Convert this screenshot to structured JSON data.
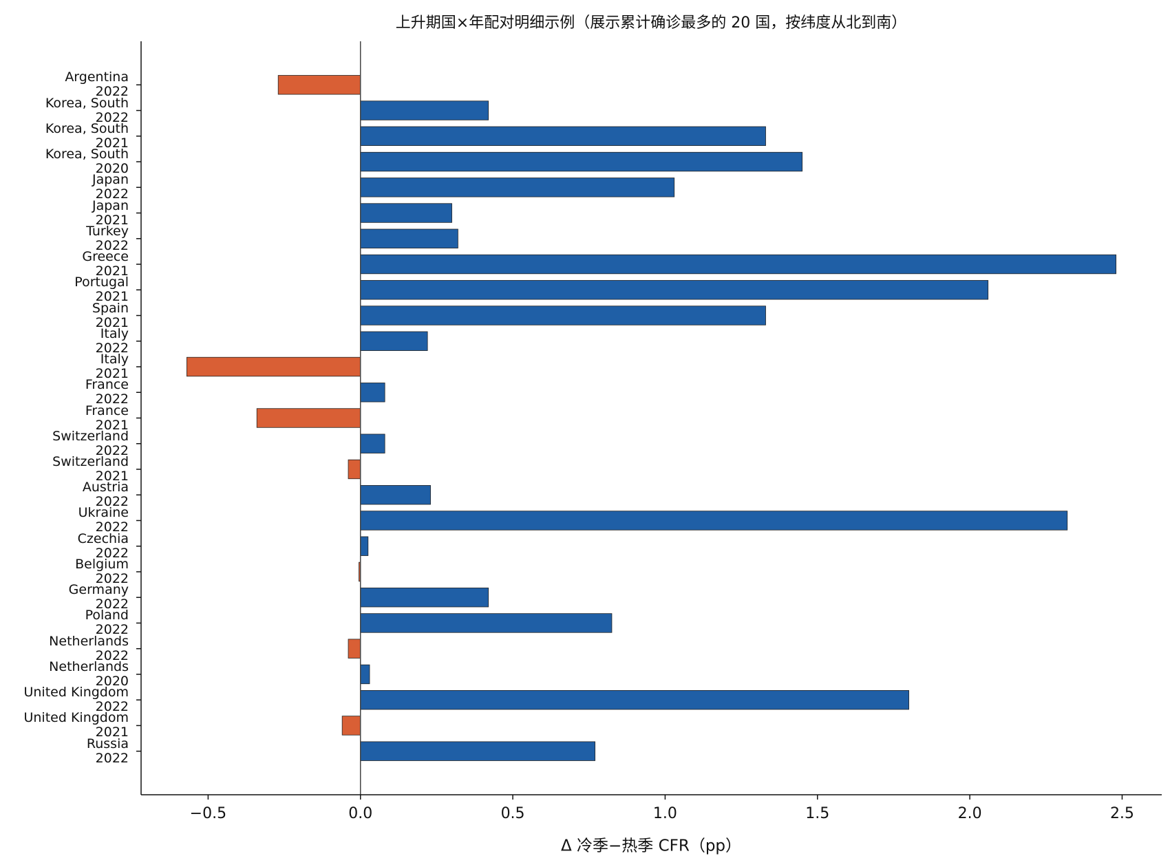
{
  "chart_data": {
    "type": "barh",
    "title": "上升期国×年配对明细示例（展示累计确诊最多的 20 国，按纬度从北到南）",
    "xlabel": "Δ 冷季−热季 CFR（pp）",
    "categories": [
      "Argentina\n2022",
      "Korea, South\n2022",
      "Korea, South\n2021",
      "Korea, South\n2020",
      "Japan\n2022",
      "Japan\n2021",
      "Turkey\n2022",
      "Greece\n2021",
      "Portugal\n2021",
      "Spain\n2021",
      "Italy\n2022",
      "Italy\n2021",
      "France\n2022",
      "France\n2021",
      "Switzerland\n2022",
      "Switzerland\n2021",
      "Austria\n2022",
      "Ukraine\n2022",
      "Czechia\n2022",
      "Belgium\n2022",
      "Germany\n2022",
      "Poland\n2022",
      "Netherlands\n2022",
      "Netherlands\n2020",
      "United Kingdom\n2022",
      "United Kingdom\n2021",
      "Russia\n2022"
    ],
    "values": [
      -0.27,
      0.42,
      1.33,
      1.45,
      1.03,
      0.3,
      0.32,
      2.48,
      2.06,
      1.33,
      0.22,
      -0.57,
      0.08,
      -0.34,
      0.08,
      -0.04,
      0.23,
      2.32,
      0.025,
      -0.005,
      0.42,
      0.825,
      -0.04,
      0.03,
      1.8,
      -0.06,
      0.77
    ],
    "positive_color": "#1f5fa6",
    "negative_color": "#d95f35",
    "reference_line": 0,
    "xlim": [
      -0.72,
      2.63
    ],
    "xticks": [
      {
        "value": -0.5,
        "label": "−0.5"
      },
      {
        "value": 0,
        "label": "0.0"
      },
      0.5,
      {
        "value": 1,
        "label": "1.0"
      },
      1.5,
      {
        "value": 2,
        "label": "2.0"
      },
      2.5
    ]
  }
}
